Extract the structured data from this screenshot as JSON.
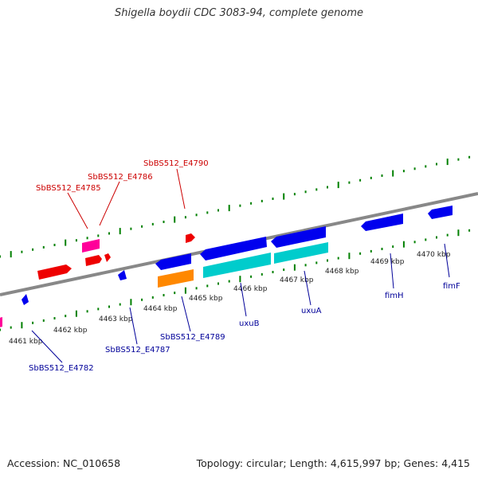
{
  "title": "Shigella boydii CDC 3083-94, complete genome",
  "footer": {
    "accession": "Accession: NC_010658",
    "stats": "Topology: circular; Length: 4,615,997 bp; Genes: 4,415"
  },
  "colors": {
    "top_strand_label": "#cc0000",
    "bottom_strand_label": "#000099",
    "ruler_ticks": "#008000",
    "backbone": "#888888"
  },
  "scale_labels": [
    {
      "text": "4461 kbp"
    },
    {
      "text": "4462 kbp"
    },
    {
      "text": "4463 kbp"
    },
    {
      "text": "4464 kbp"
    },
    {
      "text": "4465 kbp"
    },
    {
      "text": "4466 kbp"
    },
    {
      "text": "4467 kbp"
    },
    {
      "text": "4468 kbp"
    },
    {
      "text": "4469 kbp"
    },
    {
      "text": "4470 kbp"
    }
  ],
  "gene_labels": {
    "top": [
      "SbBS512_E4785",
      "SbBS512_E4786",
      "SbBS512_E4790"
    ],
    "bottom": [
      "SbBS512_E4782",
      "SbBS512_E4787",
      "SbBS512_E4789",
      "uxuB",
      "uxuA",
      "fimH",
      "fimF"
    ]
  }
}
